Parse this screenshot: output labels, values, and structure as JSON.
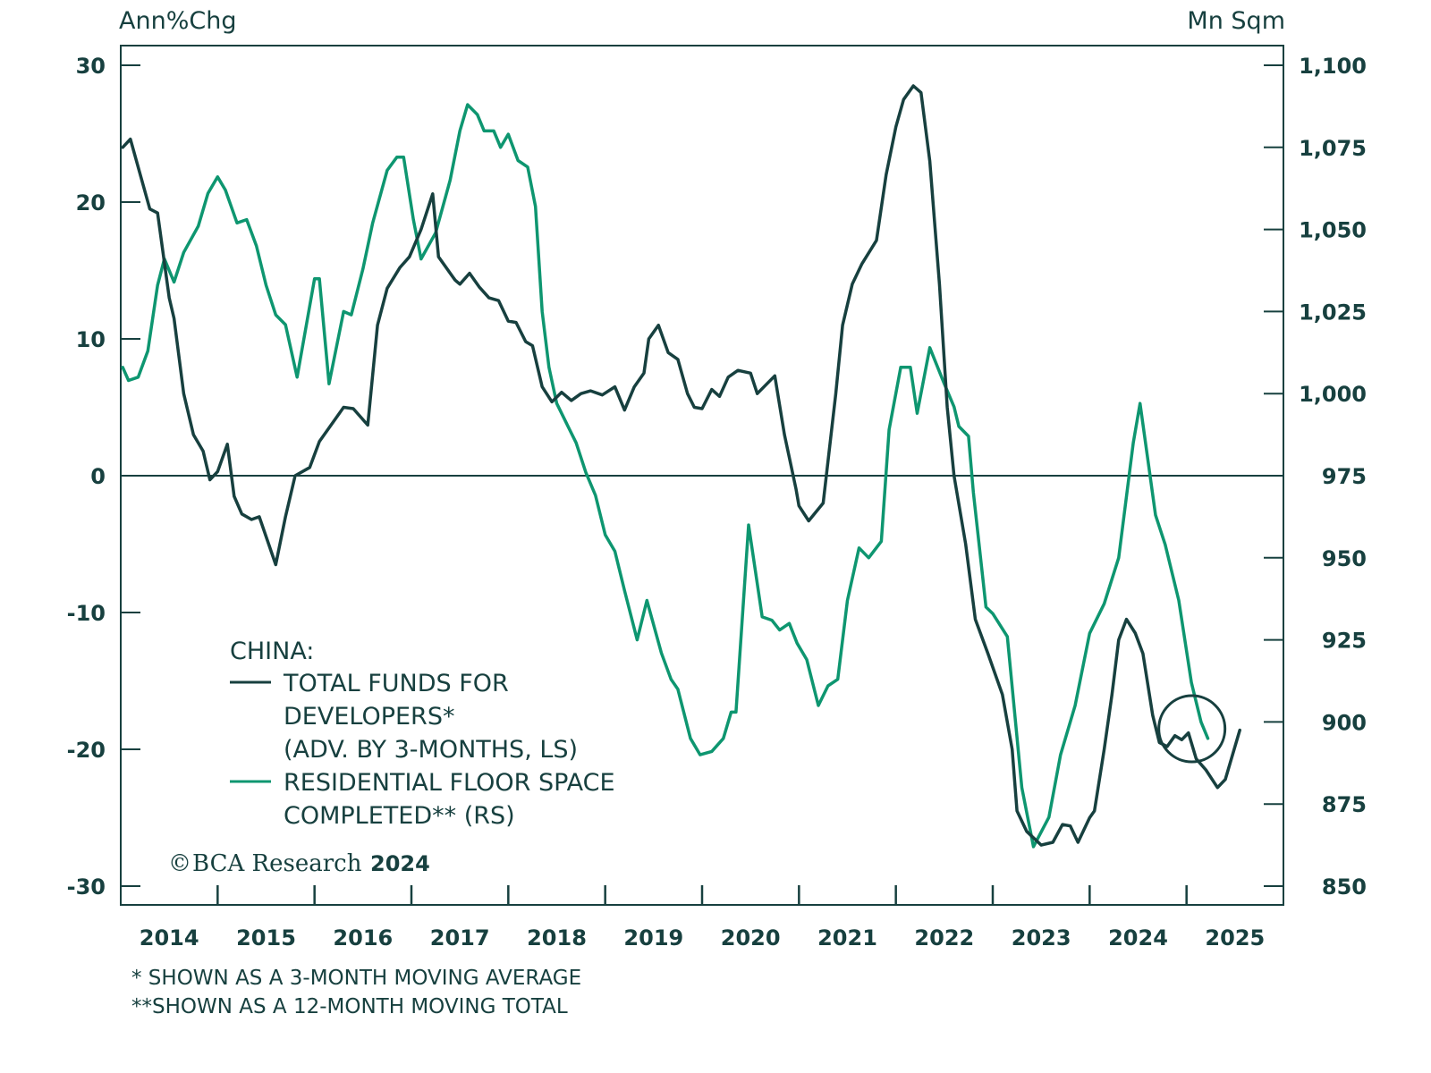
{
  "chart_data": {
    "type": "line",
    "title": "",
    "left_axis": {
      "label": "Ann%Chg",
      "ylim": [
        -30,
        30
      ],
      "ticks": [
        30,
        20,
        10,
        0,
        -10,
        -20,
        -30
      ],
      "tick_labels": [
        "30",
        "20",
        "10",
        "0",
        "-10",
        "-20",
        "-30"
      ]
    },
    "right_axis": {
      "label": "Mn Sqm",
      "ylim": [
        850,
        1100
      ],
      "ticks": [
        1100,
        1075,
        1050,
        1025,
        1000,
        975,
        950,
        925,
        900,
        875,
        850
      ],
      "tick_labels": [
        "1,100",
        "1,075",
        "1,050",
        "1,025",
        "1,000",
        "975",
        "950",
        "925",
        "900",
        "875",
        "850"
      ]
    },
    "x_axis": {
      "xlim": [
        2014.0,
        2026.0
      ],
      "tick_labels": [
        "2014",
        "2015",
        "2016",
        "2017",
        "2018",
        "2019",
        "2020",
        "2021",
        "2022",
        "2023",
        "2024",
        "2025"
      ]
    },
    "zero_line": true,
    "grid": false,
    "legend": {
      "placement": "bottom-left",
      "heading": "CHINA:",
      "entries": [
        {
          "lines": [
            "TOTAL FUNDS FOR",
            "DEVELOPERS*",
            "(ADV. BY 3-MONTHS, LS)"
          ],
          "series": "funds"
        },
        {
          "lines": [
            "RESIDENTIAL FLOOR SPACE",
            "COMPLETED** (RS)"
          ],
          "series": "floor"
        }
      ]
    },
    "annotation": {
      "type": "circle",
      "at_x": 2025.0,
      "at_left_y": -18.5
    },
    "series": [
      {
        "id": "funds",
        "name": "TOTAL FUNDS FOR DEVELOPERS* (ADV. BY 3-MONTHS, LS)",
        "axis": "left",
        "color": "#17403f",
        "points": [
          [
            2014.02,
            24.0
          ],
          [
            2014.1,
            24.6
          ],
          [
            2014.3,
            19.5
          ],
          [
            2014.38,
            19.2
          ],
          [
            2014.5,
            13.0
          ],
          [
            2014.55,
            11.5
          ],
          [
            2014.65,
            6.0
          ],
          [
            2014.75,
            3.0
          ],
          [
            2014.85,
            1.8
          ],
          [
            2014.92,
            -0.3
          ],
          [
            2015.0,
            0.3
          ],
          [
            2015.1,
            2.3
          ],
          [
            2015.17,
            -1.5
          ],
          [
            2015.25,
            -2.8
          ],
          [
            2015.35,
            -3.2
          ],
          [
            2015.43,
            -3.0
          ],
          [
            2015.6,
            -6.5
          ],
          [
            2015.7,
            -3.0
          ],
          [
            2015.8,
            0.0
          ],
          [
            2015.95,
            0.6
          ],
          [
            2016.05,
            2.5
          ],
          [
            2016.18,
            3.8
          ],
          [
            2016.3,
            5.0
          ],
          [
            2016.4,
            4.9
          ],
          [
            2016.55,
            3.7
          ],
          [
            2016.65,
            11.0
          ],
          [
            2016.75,
            13.7
          ],
          [
            2016.88,
            15.2
          ],
          [
            2016.98,
            16.0
          ],
          [
            2017.1,
            18.0
          ],
          [
            2017.22,
            20.6
          ],
          [
            2017.28,
            16.0
          ],
          [
            2017.45,
            14.3
          ],
          [
            2017.5,
            14.0
          ],
          [
            2017.6,
            14.8
          ],
          [
            2017.7,
            13.8
          ],
          [
            2017.8,
            13.0
          ],
          [
            2017.9,
            12.8
          ],
          [
            2018.0,
            11.3
          ],
          [
            2018.08,
            11.2
          ],
          [
            2018.18,
            9.8
          ],
          [
            2018.25,
            9.5
          ],
          [
            2018.35,
            6.5
          ],
          [
            2018.45,
            5.4
          ],
          [
            2018.55,
            6.1
          ],
          [
            2018.65,
            5.5
          ],
          [
            2018.75,
            6.0
          ],
          [
            2018.85,
            6.2
          ],
          [
            2018.97,
            5.9
          ],
          [
            2019.1,
            6.5
          ],
          [
            2019.2,
            4.8
          ],
          [
            2019.3,
            6.5
          ],
          [
            2019.4,
            7.5
          ],
          [
            2019.45,
            10.0
          ],
          [
            2019.55,
            11.0
          ],
          [
            2019.65,
            9.0
          ],
          [
            2019.75,
            8.5
          ],
          [
            2019.85,
            6.0
          ],
          [
            2019.92,
            5.0
          ],
          [
            2020.0,
            4.9
          ],
          [
            2020.1,
            6.3
          ],
          [
            2020.18,
            5.8
          ],
          [
            2020.27,
            7.2
          ],
          [
            2020.37,
            7.7
          ],
          [
            2020.5,
            7.5
          ],
          [
            2020.57,
            6.0
          ],
          [
            2020.75,
            7.3
          ],
          [
            2020.85,
            3.0
          ],
          [
            2020.97,
            -1.0
          ],
          [
            2021.0,
            -2.2
          ],
          [
            2021.1,
            -3.3
          ],
          [
            2021.25,
            -2.0
          ],
          [
            2021.38,
            6.0
          ],
          [
            2021.45,
            11.0
          ],
          [
            2021.55,
            14.0
          ],
          [
            2021.65,
            15.5
          ],
          [
            2021.8,
            17.2
          ],
          [
            2021.9,
            22.0
          ],
          [
            2022.0,
            25.5
          ],
          [
            2022.08,
            27.5
          ],
          [
            2022.18,
            28.5
          ],
          [
            2022.26,
            28.0
          ],
          [
            2022.35,
            23.0
          ],
          [
            2022.45,
            14.0
          ],
          [
            2022.53,
            5.0
          ],
          [
            2022.6,
            0.0
          ],
          [
            2022.72,
            -5.0
          ],
          [
            2022.82,
            -10.5
          ],
          [
            2022.95,
            -13.0
          ],
          [
            2023.1,
            -16.0
          ],
          [
            2023.2,
            -20.0
          ],
          [
            2023.25,
            -24.5
          ],
          [
            2023.35,
            -26.0
          ],
          [
            2023.5,
            -27.0
          ],
          [
            2023.62,
            -26.8
          ],
          [
            2023.72,
            -25.5
          ],
          [
            2023.8,
            -25.6
          ],
          [
            2023.88,
            -26.8
          ],
          [
            2024.0,
            -25.0
          ],
          [
            2024.05,
            -24.5
          ],
          [
            2024.15,
            -20.0
          ],
          [
            2024.23,
            -16.0
          ],
          [
            2024.3,
            -12.0
          ],
          [
            2024.38,
            -10.5
          ],
          [
            2024.47,
            -11.5
          ],
          [
            2024.55,
            -13.0
          ],
          [
            2024.65,
            -17.5
          ],
          [
            2024.72,
            -19.5
          ],
          [
            2024.8,
            -19.8
          ],
          [
            2024.88,
            -19.0
          ],
          [
            2024.95,
            -19.3
          ],
          [
            2025.02,
            -18.8
          ],
          [
            2025.1,
            -20.7
          ],
          [
            2025.2,
            -21.5
          ],
          [
            2025.32,
            -22.8
          ],
          [
            2025.4,
            -22.2
          ],
          [
            2025.55,
            -18.6
          ]
        ]
      },
      {
        "id": "floor",
        "name": "RESIDENTIAL FLOOR SPACE COMPLETED** (RS)",
        "axis": "right",
        "color": "#0e9670",
        "points": [
          [
            2014.02,
            1008
          ],
          [
            2014.08,
            1004
          ],
          [
            2014.18,
            1005
          ],
          [
            2014.28,
            1013
          ],
          [
            2014.38,
            1033
          ],
          [
            2014.45,
            1041
          ],
          [
            2014.55,
            1034
          ],
          [
            2014.65,
            1043
          ],
          [
            2014.8,
            1051
          ],
          [
            2014.9,
            1061
          ],
          [
            2015.0,
            1066
          ],
          [
            2015.08,
            1062
          ],
          [
            2015.2,
            1052
          ],
          [
            2015.3,
            1053
          ],
          [
            2015.4,
            1045
          ],
          [
            2015.5,
            1033
          ],
          [
            2015.6,
            1024
          ],
          [
            2015.7,
            1021
          ],
          [
            2015.82,
            1005
          ],
          [
            2016.0,
            1035
          ],
          [
            2016.05,
            1035
          ],
          [
            2016.15,
            1003
          ],
          [
            2016.3,
            1025
          ],
          [
            2016.38,
            1024
          ],
          [
            2016.5,
            1038
          ],
          [
            2016.6,
            1052
          ],
          [
            2016.75,
            1068
          ],
          [
            2016.85,
            1072
          ],
          [
            2016.92,
            1072
          ],
          [
            2017.02,
            1053
          ],
          [
            2017.1,
            1041
          ],
          [
            2017.25,
            1049
          ],
          [
            2017.4,
            1065
          ],
          [
            2017.5,
            1080
          ],
          [
            2017.58,
            1088
          ],
          [
            2017.68,
            1085
          ],
          [
            2017.75,
            1080
          ],
          [
            2017.85,
            1080
          ],
          [
            2017.92,
            1075
          ],
          [
            2018.0,
            1079
          ],
          [
            2018.1,
            1071
          ],
          [
            2018.2,
            1069
          ],
          [
            2018.28,
            1057
          ],
          [
            2018.35,
            1025
          ],
          [
            2018.42,
            1008
          ],
          [
            2018.5,
            997
          ],
          [
            2018.6,
            991
          ],
          [
            2018.7,
            985
          ],
          [
            2018.8,
            976
          ],
          [
            2018.9,
            969
          ],
          [
            2019.0,
            957
          ],
          [
            2019.1,
            952
          ],
          [
            2019.2,
            940
          ],
          [
            2019.33,
            925
          ],
          [
            2019.43,
            937
          ],
          [
            2019.58,
            921
          ],
          [
            2019.68,
            913
          ],
          [
            2019.75,
            910
          ],
          [
            2019.88,
            895
          ],
          [
            2019.98,
            890
          ],
          [
            2020.1,
            891
          ],
          [
            2020.22,
            895
          ],
          [
            2020.3,
            903
          ],
          [
            2020.35,
            903
          ],
          [
            2020.48,
            960
          ],
          [
            2020.62,
            932
          ],
          [
            2020.72,
            931
          ],
          [
            2020.8,
            928
          ],
          [
            2020.9,
            930
          ],
          [
            2020.98,
            924
          ],
          [
            2021.08,
            919
          ],
          [
            2021.2,
            905
          ],
          [
            2021.3,
            911
          ],
          [
            2021.4,
            913
          ],
          [
            2021.5,
            937
          ],
          [
            2021.62,
            953
          ],
          [
            2021.72,
            950
          ],
          [
            2021.85,
            955
          ],
          [
            2021.93,
            989
          ],
          [
            2022.05,
            1008
          ],
          [
            2022.15,
            1008
          ],
          [
            2022.22,
            994
          ],
          [
            2022.35,
            1014
          ],
          [
            2022.5,
            1003
          ],
          [
            2022.6,
            996
          ],
          [
            2022.65,
            990
          ],
          [
            2022.75,
            987
          ],
          [
            2022.8,
            970
          ],
          [
            2022.9,
            943
          ],
          [
            2022.93,
            935
          ],
          [
            2023.0,
            933
          ],
          [
            2023.15,
            926
          ],
          [
            2023.3,
            880
          ],
          [
            2023.42,
            862
          ],
          [
            2023.58,
            871
          ],
          [
            2023.7,
            890
          ],
          [
            2023.85,
            905
          ],
          [
            2024.0,
            927
          ],
          [
            2024.15,
            936
          ],
          [
            2024.3,
            950
          ],
          [
            2024.45,
            985
          ],
          [
            2024.52,
            997
          ],
          [
            2024.68,
            963
          ],
          [
            2024.78,
            954
          ],
          [
            2024.92,
            937
          ],
          [
            2025.05,
            912
          ],
          [
            2025.15,
            900
          ],
          [
            2025.22,
            895
          ]
        ]
      }
    ]
  },
  "credit": {
    "symbol": "©",
    "brand": "BCΑ Research",
    "year": "2024"
  },
  "footnotes": [
    "* SHOWN AS A 3-MONTH MOVING AVERAGE",
    "**SHOWN AS A 12-MONTH MOVING TOTAL"
  ]
}
